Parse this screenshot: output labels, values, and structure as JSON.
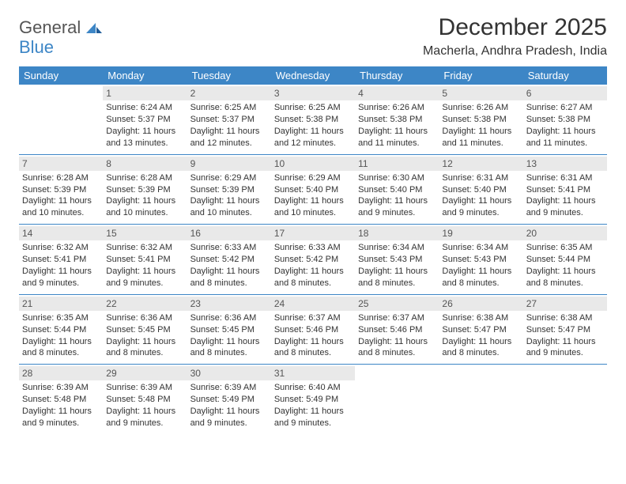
{
  "brand": {
    "part1": "General",
    "part2": "Blue"
  },
  "title": "December 2025",
  "location": "Macherla, Andhra Pradesh, India",
  "colors": {
    "header_bg": "#3d86c6",
    "header_text": "#ffffff",
    "daynum_bg": "#e9e9e9",
    "rule": "#3d86c6",
    "page_bg": "#ffffff",
    "text": "#333333"
  },
  "typography": {
    "title_fontsize": 30,
    "location_fontsize": 16,
    "dayheader_fontsize": 13,
    "cell_fontsize": 11
  },
  "day_headers": [
    "Sunday",
    "Monday",
    "Tuesday",
    "Wednesday",
    "Thursday",
    "Friday",
    "Saturday"
  ],
  "weeks": [
    [
      null,
      {
        "n": "1",
        "sr": "Sunrise: 6:24 AM",
        "ss": "Sunset: 5:37 PM",
        "dl": "Daylight: 11 hours and 13 minutes."
      },
      {
        "n": "2",
        "sr": "Sunrise: 6:25 AM",
        "ss": "Sunset: 5:37 PM",
        "dl": "Daylight: 11 hours and 12 minutes."
      },
      {
        "n": "3",
        "sr": "Sunrise: 6:25 AM",
        "ss": "Sunset: 5:38 PM",
        "dl": "Daylight: 11 hours and 12 minutes."
      },
      {
        "n": "4",
        "sr": "Sunrise: 6:26 AM",
        "ss": "Sunset: 5:38 PM",
        "dl": "Daylight: 11 hours and 11 minutes."
      },
      {
        "n": "5",
        "sr": "Sunrise: 6:26 AM",
        "ss": "Sunset: 5:38 PM",
        "dl": "Daylight: 11 hours and 11 minutes."
      },
      {
        "n": "6",
        "sr": "Sunrise: 6:27 AM",
        "ss": "Sunset: 5:38 PM",
        "dl": "Daylight: 11 hours and 11 minutes."
      }
    ],
    [
      {
        "n": "7",
        "sr": "Sunrise: 6:28 AM",
        "ss": "Sunset: 5:39 PM",
        "dl": "Daylight: 11 hours and 10 minutes."
      },
      {
        "n": "8",
        "sr": "Sunrise: 6:28 AM",
        "ss": "Sunset: 5:39 PM",
        "dl": "Daylight: 11 hours and 10 minutes."
      },
      {
        "n": "9",
        "sr": "Sunrise: 6:29 AM",
        "ss": "Sunset: 5:39 PM",
        "dl": "Daylight: 11 hours and 10 minutes."
      },
      {
        "n": "10",
        "sr": "Sunrise: 6:29 AM",
        "ss": "Sunset: 5:40 PM",
        "dl": "Daylight: 11 hours and 10 minutes."
      },
      {
        "n": "11",
        "sr": "Sunrise: 6:30 AM",
        "ss": "Sunset: 5:40 PM",
        "dl": "Daylight: 11 hours and 9 minutes."
      },
      {
        "n": "12",
        "sr": "Sunrise: 6:31 AM",
        "ss": "Sunset: 5:40 PM",
        "dl": "Daylight: 11 hours and 9 minutes."
      },
      {
        "n": "13",
        "sr": "Sunrise: 6:31 AM",
        "ss": "Sunset: 5:41 PM",
        "dl": "Daylight: 11 hours and 9 minutes."
      }
    ],
    [
      {
        "n": "14",
        "sr": "Sunrise: 6:32 AM",
        "ss": "Sunset: 5:41 PM",
        "dl": "Daylight: 11 hours and 9 minutes."
      },
      {
        "n": "15",
        "sr": "Sunrise: 6:32 AM",
        "ss": "Sunset: 5:41 PM",
        "dl": "Daylight: 11 hours and 9 minutes."
      },
      {
        "n": "16",
        "sr": "Sunrise: 6:33 AM",
        "ss": "Sunset: 5:42 PM",
        "dl": "Daylight: 11 hours and 8 minutes."
      },
      {
        "n": "17",
        "sr": "Sunrise: 6:33 AM",
        "ss": "Sunset: 5:42 PM",
        "dl": "Daylight: 11 hours and 8 minutes."
      },
      {
        "n": "18",
        "sr": "Sunrise: 6:34 AM",
        "ss": "Sunset: 5:43 PM",
        "dl": "Daylight: 11 hours and 8 minutes."
      },
      {
        "n": "19",
        "sr": "Sunrise: 6:34 AM",
        "ss": "Sunset: 5:43 PM",
        "dl": "Daylight: 11 hours and 8 minutes."
      },
      {
        "n": "20",
        "sr": "Sunrise: 6:35 AM",
        "ss": "Sunset: 5:44 PM",
        "dl": "Daylight: 11 hours and 8 minutes."
      }
    ],
    [
      {
        "n": "21",
        "sr": "Sunrise: 6:35 AM",
        "ss": "Sunset: 5:44 PM",
        "dl": "Daylight: 11 hours and 8 minutes."
      },
      {
        "n": "22",
        "sr": "Sunrise: 6:36 AM",
        "ss": "Sunset: 5:45 PM",
        "dl": "Daylight: 11 hours and 8 minutes."
      },
      {
        "n": "23",
        "sr": "Sunrise: 6:36 AM",
        "ss": "Sunset: 5:45 PM",
        "dl": "Daylight: 11 hours and 8 minutes."
      },
      {
        "n": "24",
        "sr": "Sunrise: 6:37 AM",
        "ss": "Sunset: 5:46 PM",
        "dl": "Daylight: 11 hours and 8 minutes."
      },
      {
        "n": "25",
        "sr": "Sunrise: 6:37 AM",
        "ss": "Sunset: 5:46 PM",
        "dl": "Daylight: 11 hours and 8 minutes."
      },
      {
        "n": "26",
        "sr": "Sunrise: 6:38 AM",
        "ss": "Sunset: 5:47 PM",
        "dl": "Daylight: 11 hours and 8 minutes."
      },
      {
        "n": "27",
        "sr": "Sunrise: 6:38 AM",
        "ss": "Sunset: 5:47 PM",
        "dl": "Daylight: 11 hours and 9 minutes."
      }
    ],
    [
      {
        "n": "28",
        "sr": "Sunrise: 6:39 AM",
        "ss": "Sunset: 5:48 PM",
        "dl": "Daylight: 11 hours and 9 minutes."
      },
      {
        "n": "29",
        "sr": "Sunrise: 6:39 AM",
        "ss": "Sunset: 5:48 PM",
        "dl": "Daylight: 11 hours and 9 minutes."
      },
      {
        "n": "30",
        "sr": "Sunrise: 6:39 AM",
        "ss": "Sunset: 5:49 PM",
        "dl": "Daylight: 11 hours and 9 minutes."
      },
      {
        "n": "31",
        "sr": "Sunrise: 6:40 AM",
        "ss": "Sunset: 5:49 PM",
        "dl": "Daylight: 11 hours and 9 minutes."
      },
      null,
      null,
      null
    ]
  ]
}
